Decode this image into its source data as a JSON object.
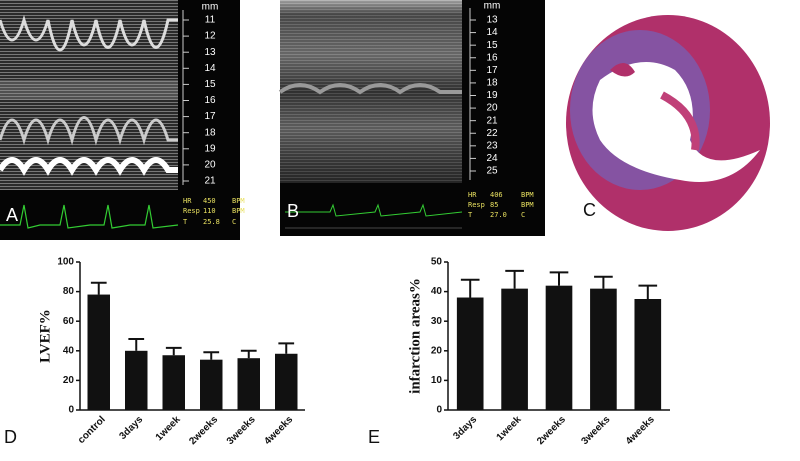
{
  "echo": [
    {
      "label": "A",
      "unit": "mm",
      "scale": [
        11,
        12,
        13,
        14,
        15,
        16,
        17,
        18,
        19,
        20,
        21
      ],
      "readout": [
        [
          "HR",
          "450",
          "BPM"
        ],
        [
          "Resp",
          "110",
          "BPM"
        ],
        [
          "T",
          "25.8",
          "C"
        ]
      ]
    },
    {
      "label": "B",
      "unit": "mm",
      "scale": [
        13,
        14,
        15,
        16,
        17,
        18,
        19,
        20,
        21,
        22,
        23,
        24,
        25
      ],
      "readout": [
        [
          "HR",
          "406",
          "BPM"
        ],
        [
          "Resp",
          "85",
          "BPM"
        ],
        [
          "T",
          "27.0",
          "C"
        ]
      ]
    }
  ],
  "histology": {
    "label": "C"
  },
  "chart_data": [
    {
      "type": "bar",
      "panel_label": "D",
      "ylabel": "LVEF%",
      "categories": [
        "control",
        "3days",
        "1week",
        "2weeks",
        "3weeks",
        "4weeks"
      ],
      "values": [
        78,
        40,
        37,
        34,
        35,
        38
      ],
      "errors": [
        8,
        8,
        5,
        5,
        5,
        7
      ],
      "color": "#111111",
      "ylim": [
        0,
        100
      ],
      "yticks": [
        0,
        20,
        40,
        60,
        80,
        100
      ]
    },
    {
      "type": "bar",
      "panel_label": "E",
      "ylabel": "infarction areas%",
      "categories": [
        "3days",
        "1week",
        "2weeks",
        "3weeks",
        "4weeks"
      ],
      "values": [
        38,
        41,
        42,
        41,
        37.5
      ],
      "errors": [
        6,
        6,
        4.5,
        4,
        4.5
      ],
      "color": "#111111",
      "ylim": [
        0,
        50
      ],
      "yticks": [
        0,
        10,
        20,
        30,
        40,
        50
      ]
    }
  ]
}
